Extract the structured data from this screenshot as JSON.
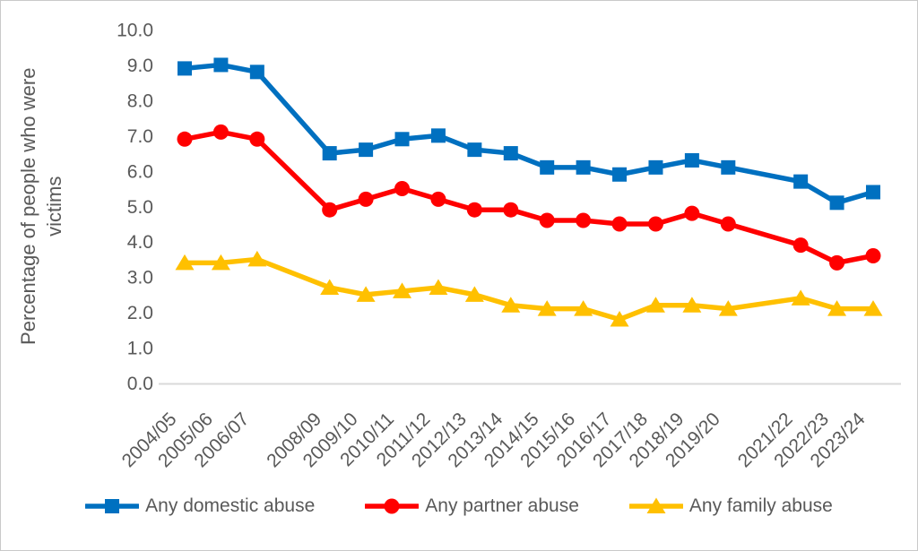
{
  "chart_data": {
    "type": "line",
    "title": "",
    "xlabel": "",
    "ylabel": "Percentage of people who were victims",
    "ylim": [
      0,
      10
    ],
    "ytick_step": 1.0,
    "yticks": [
      "0.0",
      "1.0",
      "2.0",
      "3.0",
      "4.0",
      "5.0",
      "6.0",
      "7.0",
      "8.0",
      "9.0",
      "10.0"
    ],
    "grid": false,
    "legend_position": "bottom",
    "categories": [
      "2004/05",
      "2005/06",
      "2006/07",
      "",
      "2008/09",
      "2009/10",
      "2010/11",
      "2011/12",
      "2012/13",
      "2013/14",
      "2014/15",
      "2015/16",
      "2016/17",
      "2017/18",
      "2018/19",
      "2019/20",
      "",
      "2021/22",
      "2022/23",
      "2023/24"
    ],
    "series": [
      {
        "name": "Any domestic abuse",
        "color": "#0070C0",
        "marker": "square",
        "values": [
          8.9,
          9.0,
          8.8,
          null,
          6.5,
          6.6,
          6.9,
          7.0,
          6.6,
          6.5,
          6.1,
          6.1,
          5.9,
          6.1,
          6.3,
          6.1,
          null,
          5.7,
          5.1,
          5.4
        ]
      },
      {
        "name": "Any partner abuse",
        "color": "#FF0000",
        "marker": "circle",
        "values": [
          6.9,
          7.1,
          6.9,
          null,
          4.9,
          5.2,
          5.5,
          5.2,
          4.9,
          4.9,
          4.6,
          4.6,
          4.5,
          4.5,
          4.8,
          4.5,
          null,
          3.9,
          3.4,
          3.6
        ]
      },
      {
        "name": "Any family abuse",
        "color": "#FFC000",
        "marker": "triangle",
        "values": [
          3.4,
          3.4,
          3.5,
          null,
          2.7,
          2.5,
          2.6,
          2.7,
          2.5,
          2.2,
          2.1,
          2.1,
          1.8,
          2.2,
          2.2,
          2.1,
          null,
          2.4,
          2.1,
          2.1
        ]
      }
    ]
  },
  "colors": {
    "text": "#595959",
    "axis_line": "#D9D9D9",
    "background": "#FFFFFF",
    "border": "#C9C9C9"
  }
}
